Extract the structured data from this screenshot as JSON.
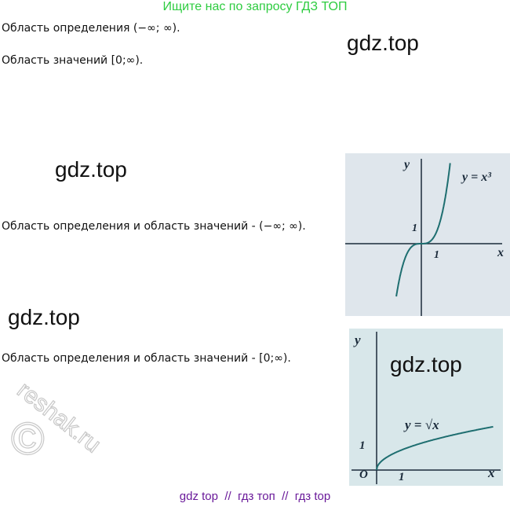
{
  "header": {
    "title": "Ищите нас по запросу ГДЗ ТОП"
  },
  "paragraphs": [
    "Область определения (−∞; ∞).",
    "Область значений [0;∞).",
    "Область определения и область значений - (−∞; ∞).",
    "Область определения и область значений - [0;∞)."
  ],
  "watermarks": [
    "gdz.top",
    "gdz.top",
    "gdz.top",
    "gdz.top",
    "reshak.ru",
    "©"
  ],
  "graphs": [
    {
      "formula": "y = x³",
      "y_label": "y",
      "x_label": "x",
      "tick_x": "1",
      "tick_y": "1"
    },
    {
      "formula": "y = √x",
      "y_label": "y",
      "x_label": "x",
      "tick_x": "1",
      "tick_y": "1",
      "origin": "O"
    }
  ],
  "footer": {
    "text": "gdz top  //  гдз топ  //  гдз top"
  }
}
